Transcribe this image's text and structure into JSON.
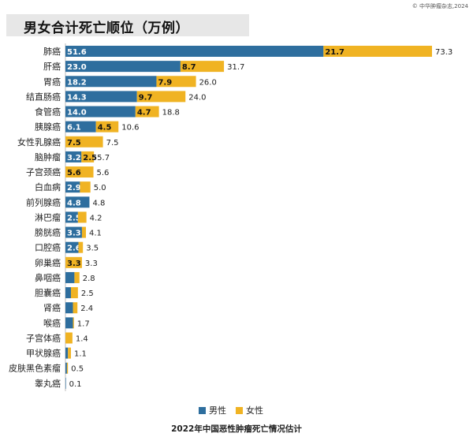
{
  "source": "© 中华肿瘤杂志,2024",
  "title": "男女合计死亡顺位（万例）",
  "caption": "2022年中国恶性肿瘤死亡情况估计",
  "colors": {
    "male": "#2e6e9e",
    "female": "#f0b323",
    "label_dark": "#111111",
    "label_light": "#ffffff",
    "title_band": "#e7e7e7"
  },
  "chart_data": {
    "type": "bar",
    "orientation": "horizontal",
    "stacked": true,
    "title": "男女合计死亡顺位（万例）",
    "categories": [
      "肺癌",
      "肝癌",
      "胃癌",
      "结直肠癌",
      "食管癌",
      "胰腺癌",
      "女性乳腺癌",
      "脑肿瘤",
      "子宫颈癌",
      "白血病",
      "前列腺癌",
      "淋巴瘤",
      "膀胱癌",
      "口腔癌",
      "卵巢癌",
      "鼻咽癌",
      "胆囊癌",
      "肾癌",
      "喉癌",
      "子宫体癌",
      "甲状腺癌",
      "皮肤黑色素瘤",
      "睾丸癌"
    ],
    "series": [
      {
        "name": "男性",
        "values": [
          51.6,
          23.0,
          18.2,
          14.3,
          14.0,
          6.1,
          0,
          3.2,
          0,
          2.9,
          4.8,
          2.5,
          3.3,
          2.6,
          0,
          1.8,
          1.1,
          1.5,
          1.5,
          0,
          0.5,
          0.3,
          0.1
        ],
        "labels": [
          "51.6",
          "23.0",
          "18.2",
          "14.3",
          "14.0",
          "6.1",
          "",
          "3.2",
          "",
          "2.9",
          "4.8",
          "2.5",
          "3.3",
          "2.6",
          "",
          "",
          "",
          "",
          "",
          "",
          "",
          "",
          ""
        ]
      },
      {
        "name": "女性",
        "values": [
          21.7,
          8.7,
          7.9,
          9.7,
          4.7,
          4.5,
          7.5,
          2.5,
          5.6,
          2.1,
          0,
          1.7,
          0.8,
          0.9,
          3.3,
          1.0,
          1.4,
          0.9,
          0.2,
          1.4,
          0.6,
          0.2,
          0
        ],
        "labels": [
          "21.7",
          "8.7",
          "7.9",
          "9.7",
          "4.7",
          "4.5",
          "7.5",
          "2.5",
          "5.6",
          "",
          "",
          "",
          "",
          "",
          "3.3",
          "",
          "",
          "",
          "",
          "",
          "",
          "",
          ""
        ]
      }
    ],
    "totals": [
      "73.3",
      "31.7",
      "26.0",
      "24.0",
      "18.8",
      "10.6",
      "7.5",
      "5.7",
      "5.6",
      "5.0",
      "4.8",
      "4.2",
      "4.1",
      "3.5",
      "3.3",
      "2.8",
      "2.5",
      "2.4",
      "1.7",
      "1.4",
      "1.1",
      "0.5",
      "0.1"
    ],
    "xlim": [
      0,
      73.3
    ],
    "legend_position": "bottom"
  }
}
